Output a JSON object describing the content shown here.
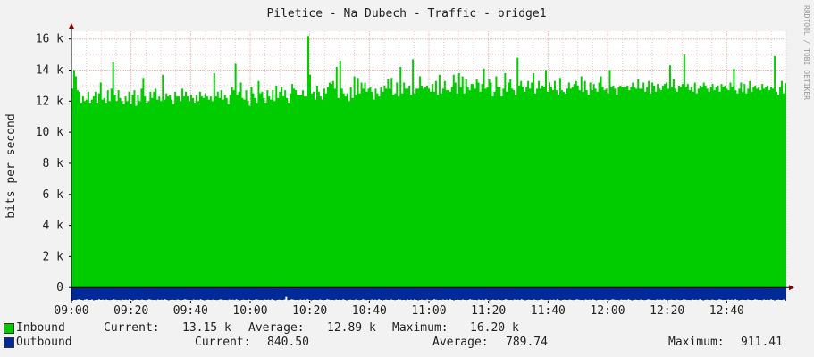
{
  "chart_data": {
    "type": "area",
    "title": "Piletice - Na Dubech - Traffic - bridge1",
    "ylabel": "bits per second",
    "watermark": "RRDTOOL / TOBI OETIKER",
    "x_ticks": [
      "09:00",
      "09:20",
      "09:40",
      "10:00",
      "10:20",
      "10:40",
      "11:00",
      "11:20",
      "11:40",
      "12:00",
      "12:20",
      "12:40"
    ],
    "x_range_minutes": [
      0,
      240
    ],
    "y_ticks": [
      {
        "value": 0,
        "label": "0"
      },
      {
        "value": 2000,
        "label": "2 k"
      },
      {
        "value": 4000,
        "label": "4 k"
      },
      {
        "value": 6000,
        "label": "6 k"
      },
      {
        "value": 8000,
        "label": "8 k"
      },
      {
        "value": 10000,
        "label": "10 k"
      },
      {
        "value": 12000,
        "label": "12 k"
      },
      {
        "value": 14000,
        "label": "14 k"
      },
      {
        "value": 16000,
        "label": "16 k"
      }
    ],
    "ylim": [
      -850,
      16500
    ],
    "grid": true,
    "series": [
      {
        "name": "Inbound",
        "color": "#00cc00",
        "values": [
          12800,
          14000,
          13600,
          12700,
          12600,
          11900,
          12300,
          12000,
          12100,
          12600,
          11900,
          12100,
          12300,
          12600,
          11900,
          12500,
          13200,
          12100,
          12200,
          11900,
          12700,
          12000,
          12800,
          14500,
          12400,
          12000,
          12700,
          12200,
          12000,
          11800,
          12300,
          12000,
          12600,
          11800,
          12400,
          12700,
          11700,
          12400,
          12000,
          12800,
          13500,
          12300,
          11900,
          12000,
          12600,
          12200,
          12600,
          12800,
          12100,
          12300,
          12000,
          13700,
          12100,
          12500,
          12300,
          12400,
          12100,
          11800,
          12600,
          12300,
          12300,
          12000,
          12800,
          12300,
          12600,
          12300,
          12000,
          12400,
          12200,
          11900,
          12400,
          12000,
          12600,
          12300,
          12200,
          12500,
          12300,
          12100,
          12300,
          12000,
          13800,
          12300,
          12600,
          12200,
          12700,
          12100,
          12400,
          12200,
          11800,
          12400,
          12900,
          12700,
          14400,
          12400,
          12600,
          13200,
          12200,
          12100,
          12700,
          12000,
          11700,
          12900,
          12500,
          12200,
          11900,
          13300,
          12500,
          12600,
          12200,
          11900,
          12700,
          12300,
          12100,
          12700,
          12000,
          13000,
          12200,
          12600,
          12900,
          12300,
          12700,
          12200,
          11900,
          12500,
          13100,
          12800,
          12700,
          12400,
          12400,
          12400,
          12700,
          12300,
          12300,
          16200,
          13700,
          12500,
          12600,
          12100,
          13000,
          12600,
          12300,
          12100,
          12800,
          12500,
          12900,
          13200,
          13100,
          13300,
          12800,
          14200,
          12200,
          14600,
          12800,
          12500,
          12300,
          12500,
          12000,
          12900,
          12200,
          13600,
          12400,
          13500,
          12500,
          13200,
          12800,
          13200,
          12600,
          12800,
          12900,
          12600,
          12100,
          12800,
          12500,
          12300,
          12900,
          12600,
          13000,
          12800,
          13400,
          12800,
          13500,
          12400,
          12500,
          13200,
          12300,
          14200,
          12500,
          13200,
          12800,
          12800,
          13000,
          12400,
          14700,
          12500,
          12800,
          12800,
          13600,
          13000,
          12800,
          12900,
          13000,
          12800,
          12600,
          13100,
          12600,
          13300,
          12400,
          13700,
          12500,
          12800,
          13300,
          12700,
          12700,
          12600,
          12900,
          13700,
          13200,
          12500,
          13800,
          12900,
          13600,
          12500,
          13400,
          12900,
          12700,
          13100,
          13100,
          12800,
          13400,
          13200,
          12600,
          13100,
          14100,
          12800,
          12900,
          13400,
          13200,
          12300,
          12600,
          13600,
          12900,
          12900,
          12300,
          12800,
          13800,
          12600,
          13200,
          13400,
          12800,
          12700,
          12400,
          14800,
          13000,
          13300,
          12900,
          12600,
          12900,
          13300,
          12800,
          13200,
          13800,
          12500,
          12800,
          13300,
          12800,
          13000,
          12900,
          14000,
          12600,
          13200,
          12900,
          12700,
          13300,
          12700,
          12400,
          13500,
          12700,
          12600,
          12500,
          12800,
          13200,
          12800,
          12900,
          13100,
          13300,
          13000,
          12700,
          13600,
          12600,
          13300,
          12700,
          12400,
          13200,
          12700,
          13100,
          12800,
          12600,
          13200,
          13600,
          12900,
          12700,
          12800,
          12500,
          14000,
          12900,
          13000,
          12800,
          12400,
          12900,
          13000,
          12900,
          12900,
          12900,
          13000,
          12700,
          12900,
          13200,
          12900,
          12800,
          13400,
          12800,
          12800,
          13200,
          12600,
          12900,
          13300,
          12500,
          13200,
          13000,
          12600,
          13100,
          12800,
          12700,
          13000,
          13100,
          13200,
          12800,
          14300,
          12900,
          13400,
          12800,
          12600,
          13000,
          12900,
          13100,
          15000,
          12900,
          13100,
          12700,
          12900,
          12600,
          13200,
          12500,
          12800,
          13000,
          12900,
          13200,
          13000,
          12800,
          12600,
          12900,
          13100,
          12700,
          12900,
          13000,
          12600,
          13100,
          12900,
          13000,
          12800,
          12700,
          13200,
          12900,
          14100,
          12700,
          12500,
          12800,
          13200,
          12600,
          13100,
          12500,
          12800,
          13300,
          12600,
          12900,
          13000,
          12800,
          12900,
          12700,
          13100,
          12800,
          12900,
          13000,
          12700,
          12900,
          12800,
          14900,
          12600,
          12400,
          12900,
          13300,
          12500,
          13150
        ],
        "stats": {
          "current": "13.15 k",
          "average": "12.89 k",
          "maximum": "16.20 k"
        }
      },
      {
        "name": "Outbound",
        "color": "#002a97",
        "values": [
          -840,
          -790,
          -800,
          -770,
          -760,
          -790,
          -810,
          -780,
          -750,
          -800,
          -790,
          -770,
          -820,
          -790,
          -800,
          -760,
          -790,
          -780,
          -800,
          -770,
          -790,
          -810,
          -790,
          -760,
          -780,
          -800,
          -790,
          -810,
          -770,
          -790,
          -780,
          -800,
          -760,
          -790,
          -820,
          -790,
          -780,
          -790,
          -800,
          -770,
          -790,
          -810,
          -790,
          -760,
          -780,
          -800,
          -790,
          -810,
          -770,
          -790,
          -780,
          -800,
          -760,
          -790,
          -820,
          -790,
          -780,
          -790,
          -800,
          -770,
          -790,
          -810,
          -790,
          -760,
          -780,
          -800,
          -790,
          -810,
          -770,
          -790,
          -780,
          -800,
          -760,
          -790,
          -820,
          -790,
          -780,
          -790,
          -800,
          -770,
          -790,
          -810,
          -790,
          -760,
          -780,
          -800,
          -790,
          -810,
          -770,
          -790,
          -780,
          -800,
          -760,
          -790,
          -820,
          -790,
          -780,
          -790,
          -800,
          -770,
          -790,
          -810,
          -790,
          -760,
          -780,
          -800,
          -790,
          -810,
          -770,
          -790,
          -780,
          -800,
          -760,
          -790,
          -820,
          -790,
          -780,
          -790,
          -800,
          -770,
          -600,
          -810,
          -790,
          -760,
          -780,
          -800,
          -790,
          -810,
          -770,
          -790,
          -780,
          -800,
          -760,
          -790,
          -820,
          -790,
          -780,
          -790,
          -800,
          -770,
          -790,
          -810,
          -790,
          -760,
          -780,
          -800,
          -790,
          -810,
          -770,
          -790,
          -780,
          -800,
          -760,
          -790,
          -820,
          -790,
          -780,
          -790,
          -800,
          -770,
          -790,
          -810,
          -790,
          -760,
          -780,
          -800,
          -790,
          -810,
          -770,
          -790,
          -780,
          -800,
          -760,
          -790,
          -820,
          -790,
          -780,
          -790,
          -800,
          -770,
          -790,
          -810,
          -790,
          -760,
          -780,
          -800,
          -790,
          -810,
          -770,
          -790,
          -780,
          -800,
          -760,
          -790,
          -820,
          -790,
          -780,
          -790,
          -800,
          -770,
          -790,
          -810,
          -790,
          -760,
          -780,
          -800,
          -790,
          -810,
          -770,
          -790,
          -780,
          -800,
          -760,
          -790,
          -820,
          -790,
          -780,
          -790,
          -800,
          -770,
          -790,
          -810,
          -790,
          -760,
          -780,
          -800,
          -790,
          -810,
          -770,
          -790,
          -780,
          -800,
          -760,
          -790,
          -820,
          -790,
          -780,
          -790,
          -800,
          -770,
          -790,
          -810,
          -790,
          -760,
          -780,
          -800,
          -790,
          -810,
          -770,
          -790,
          -780,
          -800,
          -760,
          -790,
          -820,
          -790,
          -780,
          -790,
          -800,
          -770,
          -790,
          -810,
          -790,
          -760,
          -780,
          -800,
          -790,
          -810,
          -770,
          -790,
          -780,
          -800,
          -760,
          -790,
          -820,
          -790,
          -780,
          -790,
          -800,
          -770,
          -790,
          -810,
          -790,
          -760,
          -780,
          -800,
          -790,
          -810,
          -770,
          -790,
          -780,
          -800,
          -760,
          -790,
          -820,
          -790,
          -780,
          -790,
          -800,
          -770,
          -790,
          -810,
          -790,
          -760,
          -780,
          -800,
          -790,
          -810,
          -770,
          -790,
          -780,
          -800,
          -760,
          -790,
          -820,
          -790,
          -780,
          -790,
          -800,
          -770,
          -790,
          -810,
          -790,
          -760,
          -780,
          -800,
          -790,
          -810,
          -770,
          -790,
          -780,
          -800,
          -760,
          -790,
          -820,
          -790,
          -780,
          -790,
          -800,
          -770,
          -790,
          -810,
          -790,
          -760,
          -780,
          -800,
          -790,
          -810,
          -770,
          -790,
          -780,
          -800,
          -760,
          -790,
          -820,
          -790,
          -780,
          -790,
          -800,
          -770,
          -790,
          -810,
          -790,
          -760,
          -780,
          -800,
          -790,
          -810,
          -770,
          -790,
          -780,
          -800,
          -760,
          -790,
          -820,
          -790,
          -780,
          -790,
          -800,
          -770,
          -790,
          -810,
          -790,
          -760,
          -780,
          -800,
          -790,
          -810,
          -770,
          -790,
          -780,
          -800,
          -760,
          -790,
          -820,
          -790,
          -780,
          -790,
          -800,
          -770,
          -840
        ],
        "stats": {
          "current": "840.50",
          "average": "789.74",
          "maximum": "911.41"
        }
      }
    ],
    "legend": {
      "current_label": "Current:",
      "average_label": "Average:",
      "maximum_label": "Maximum:"
    }
  }
}
